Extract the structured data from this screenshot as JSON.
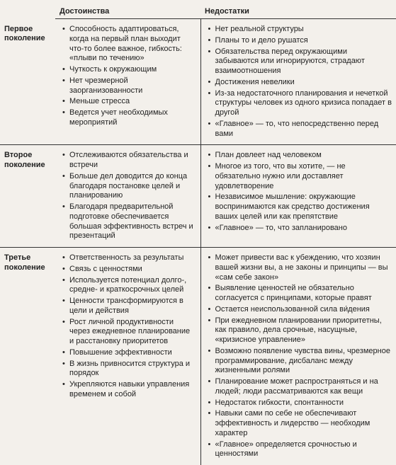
{
  "headers": {
    "advantages": "Достоинства",
    "disadvantages": "Недостатки"
  },
  "generations": [
    {
      "label_line1": "Первое",
      "label_line2": "поколение",
      "adv": [
        "Способность адаптироваться, когда на первый план выходит что-то более важное, гибкость: «плыви по течению»",
        "Чуткость к окружающим",
        "Нет чрезмерной заорганизованности",
        "Меньше стресса",
        "Ведется учет необходимых мероприятий"
      ],
      "dis": [
        "Нет реальной структуры",
        "Планы то и дело рушатся",
        "Обязательства перед окружающими забываются или игнорируются, страдают взаимоотношения",
        "Достижения невелики",
        "Из-за недостаточного планирования и нечеткой структуры человек из одного кризиса попадает в другой",
        "«Главное» — то, что непосредственно перед вами"
      ]
    },
    {
      "label_line1": "Второе",
      "label_line2": "поколение",
      "adv": [
        "Отслеживаются обязательства и встречи",
        "Больше дел доводится до конца благодаря постановке целей и планированию",
        "Благодаря предварительной подготовке обеспечивается большая эффективность встреч и презентаций"
      ],
      "dis": [
        "План довлеет над человеком",
        "Многое из того, что вы хотите, — не обязательно нужно или доставляет удовлетворение",
        "Независимое мышление: окружающие воспринимаются как средство достижения ваших целей или как препятствие",
        "«Главное» — то, что запланировано"
      ]
    },
    {
      "label_line1": "Третье",
      "label_line2": "поколение",
      "adv": [
        "Ответственность за результаты",
        "Связь с ценностями",
        "Используется потенциал долго-, средне- и краткосрочных целей",
        "Ценности трансформируются в цели и действия",
        "Рост личной продуктивности через ежедневное планирование и расстановку приоритетов",
        "Повышение эффективности",
        "В жизнь привносится структура и порядок",
        "Укрепляются навыки управления временем и собой"
      ],
      "dis": [
        "Может привести вас к убеждению, что хозяин вашей жизни вы, а не законы и принципы — вы «сам себе закон»",
        "Выявление ценностей не обязательно согласуется с принципами, которые правят",
        "Остается неиспользованной сила ви́дения",
        "При ежедневном планировании приоритетны, как правило, дела срочные, насущные, «кризисное управление»",
        "Возможно появление чувства вины, чрезмерное программирование, дисбаланс между жизненными ролями",
        "Планирование может распространяться и на людей; люди рассматриваются как вещи",
        "Недостаток гибкости, спонтанности",
        "Навыки сами по себе не обеспечивают эффективность и лидерство — необходим характер",
        "«Главное» определяется срочностью и ценностями"
      ]
    }
  ]
}
